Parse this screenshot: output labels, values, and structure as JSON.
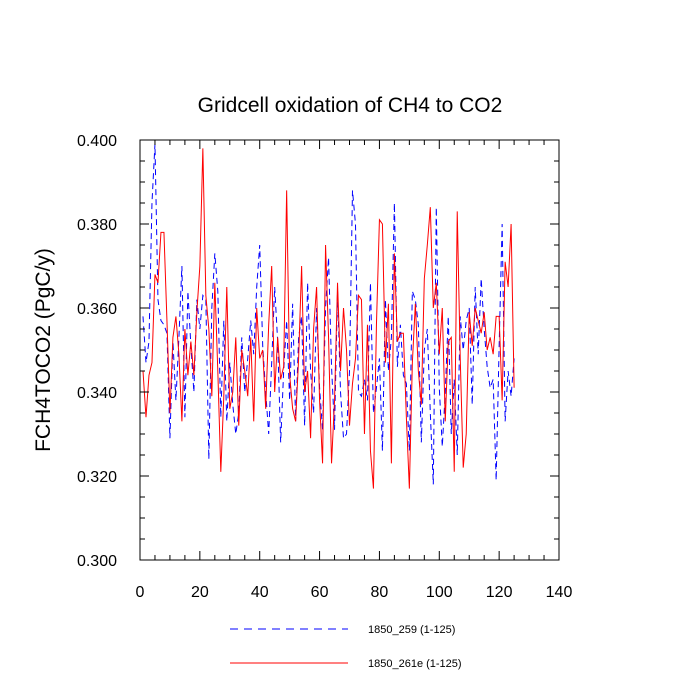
{
  "chart_data": {
    "type": "line",
    "title": "Gridcell oxidation of CH4 to CO2",
    "xlabel": "",
    "ylabel": "FCH4TOCO2  (PgC/y)",
    "xlim": [
      0,
      140
    ],
    "ylim": [
      0.3,
      0.4
    ],
    "xticks": [
      0,
      20,
      40,
      60,
      80,
      100,
      120,
      140
    ],
    "xtick_labels": [
      "0",
      "20",
      "40",
      "60",
      "80",
      "100",
      "120",
      "140"
    ],
    "yticks": [
      0.3,
      0.32,
      0.34,
      0.36,
      0.38,
      0.4
    ],
    "ytick_labels": [
      "0.300",
      "0.320",
      "0.340",
      "0.360",
      "0.380",
      "0.400"
    ],
    "grid": false,
    "legend_position": "bottom-center",
    "series": [
      {
        "name": "1850_259 (1-125)",
        "color": "#0000ff",
        "style": "dashed",
        "x": [
          1,
          2,
          3,
          4,
          5,
          6,
          7,
          8,
          9,
          10,
          11,
          12,
          13,
          14,
          15,
          16,
          17,
          18,
          19,
          20,
          21,
          22,
          23,
          24,
          25,
          26,
          27,
          28,
          29,
          30,
          31,
          32,
          33,
          34,
          35,
          36,
          37,
          38,
          39,
          40,
          41,
          42,
          43,
          44,
          45,
          46,
          47,
          48,
          49,
          50,
          51,
          52,
          53,
          54,
          55,
          56,
          57,
          58,
          59,
          60,
          61,
          62,
          63,
          64,
          65,
          66,
          67,
          68,
          69,
          70,
          71,
          72,
          73,
          74,
          75,
          76,
          77,
          78,
          79,
          80,
          81,
          82,
          83,
          84,
          85,
          86,
          87,
          88,
          89,
          90,
          91,
          92,
          93,
          94,
          95,
          96,
          97,
          98,
          99,
          100,
          101,
          102,
          103,
          104,
          105,
          106,
          107,
          108,
          109,
          110,
          111,
          112,
          113,
          114,
          115,
          116,
          117,
          118,
          119,
          120,
          121,
          122,
          123,
          124,
          125
        ],
        "values": [
          0.358,
          0.347,
          0.352,
          0.385,
          0.399,
          0.362,
          0.357,
          0.356,
          0.354,
          0.329,
          0.352,
          0.338,
          0.353,
          0.37,
          0.334,
          0.364,
          0.351,
          0.34,
          0.362,
          0.355,
          0.363,
          0.362,
          0.324,
          0.36,
          0.373,
          0.364,
          0.334,
          0.357,
          0.333,
          0.347,
          0.337,
          0.33,
          0.335,
          0.353,
          0.34,
          0.348,
          0.357,
          0.349,
          0.365,
          0.375,
          0.351,
          0.34,
          0.33,
          0.347,
          0.365,
          0.352,
          0.328,
          0.345,
          0.357,
          0.338,
          0.361,
          0.333,
          0.353,
          0.358,
          0.332,
          0.366,
          0.345,
          0.335,
          0.36,
          0.341,
          0.331,
          0.36,
          0.372,
          0.346,
          0.331,
          0.364,
          0.34,
          0.329,
          0.33,
          0.345,
          0.388,
          0.38,
          0.34,
          0.339,
          0.343,
          0.338,
          0.366,
          0.335,
          0.341,
          0.348,
          0.326,
          0.362,
          0.345,
          0.353,
          0.385,
          0.346,
          0.356,
          0.344,
          0.342,
          0.326,
          0.364,
          0.362,
          0.356,
          0.328,
          0.35,
          0.355,
          0.335,
          0.318,
          0.384,
          0.341,
          0.327,
          0.34,
          0.358,
          0.33,
          0.343,
          0.325,
          0.358,
          0.35,
          0.357,
          0.36,
          0.337,
          0.365,
          0.349,
          0.367,
          0.355,
          0.346,
          0.341,
          0.343,
          0.319,
          0.351,
          0.38,
          0.333,
          0.345,
          0.339,
          0.348
        ]
      },
      {
        "name": "1850_261e (1-125)",
        "color": "#ff0000",
        "style": "solid",
        "x": [
          1,
          2,
          3,
          4,
          5,
          6,
          7,
          8,
          9,
          10,
          11,
          12,
          13,
          14,
          15,
          16,
          17,
          18,
          19,
          20,
          21,
          22,
          23,
          24,
          25,
          26,
          27,
          28,
          29,
          30,
          31,
          32,
          33,
          34,
          35,
          36,
          37,
          38,
          39,
          40,
          41,
          42,
          43,
          44,
          45,
          46,
          47,
          48,
          49,
          50,
          51,
          52,
          53,
          54,
          55,
          56,
          57,
          58,
          59,
          60,
          61,
          62,
          63,
          64,
          65,
          66,
          67,
          68,
          69,
          70,
          71,
          72,
          73,
          74,
          75,
          76,
          77,
          78,
          79,
          80,
          81,
          82,
          83,
          84,
          85,
          86,
          87,
          88,
          89,
          90,
          91,
          92,
          93,
          94,
          95,
          96,
          97,
          98,
          99,
          100,
          101,
          102,
          103,
          104,
          105,
          106,
          107,
          108,
          109,
          110,
          111,
          112,
          113,
          114,
          115,
          116,
          117,
          118,
          119,
          120,
          121,
          122,
          123,
          124,
          125
        ],
        "values": [
          0.345,
          0.334,
          0.344,
          0.347,
          0.368,
          0.366,
          0.378,
          0.378,
          0.357,
          0.335,
          0.353,
          0.358,
          0.349,
          0.333,
          0.355,
          0.344,
          0.352,
          0.344,
          0.359,
          0.37,
          0.398,
          0.363,
          0.355,
          0.339,
          0.366,
          0.345,
          0.321,
          0.339,
          0.365,
          0.336,
          0.34,
          0.353,
          0.332,
          0.35,
          0.345,
          0.339,
          0.353,
          0.333,
          0.36,
          0.348,
          0.35,
          0.336,
          0.356,
          0.37,
          0.34,
          0.353,
          0.343,
          0.346,
          0.388,
          0.344,
          0.336,
          0.333,
          0.348,
          0.37,
          0.34,
          0.345,
          0.329,
          0.355,
          0.365,
          0.338,
          0.323,
          0.375,
          0.353,
          0.323,
          0.338,
          0.366,
          0.345,
          0.36,
          0.35,
          0.332,
          0.342,
          0.348,
          0.363,
          0.362,
          0.33,
          0.356,
          0.326,
          0.317,
          0.356,
          0.381,
          0.38,
          0.347,
          0.361,
          0.323,
          0.373,
          0.352,
          0.354,
          0.354,
          0.334,
          0.317,
          0.347,
          0.361,
          0.345,
          0.337,
          0.367,
          0.375,
          0.384,
          0.36,
          0.366,
          0.349,
          0.36,
          0.333,
          0.352,
          0.353,
          0.321,
          0.383,
          0.348,
          0.322,
          0.33,
          0.359,
          0.351,
          0.36,
          0.357,
          0.354,
          0.359,
          0.35,
          0.353,
          0.349,
          0.358,
          0.358,
          0.338,
          0.371,
          0.365,
          0.38,
          0.341
        ]
      }
    ]
  }
}
